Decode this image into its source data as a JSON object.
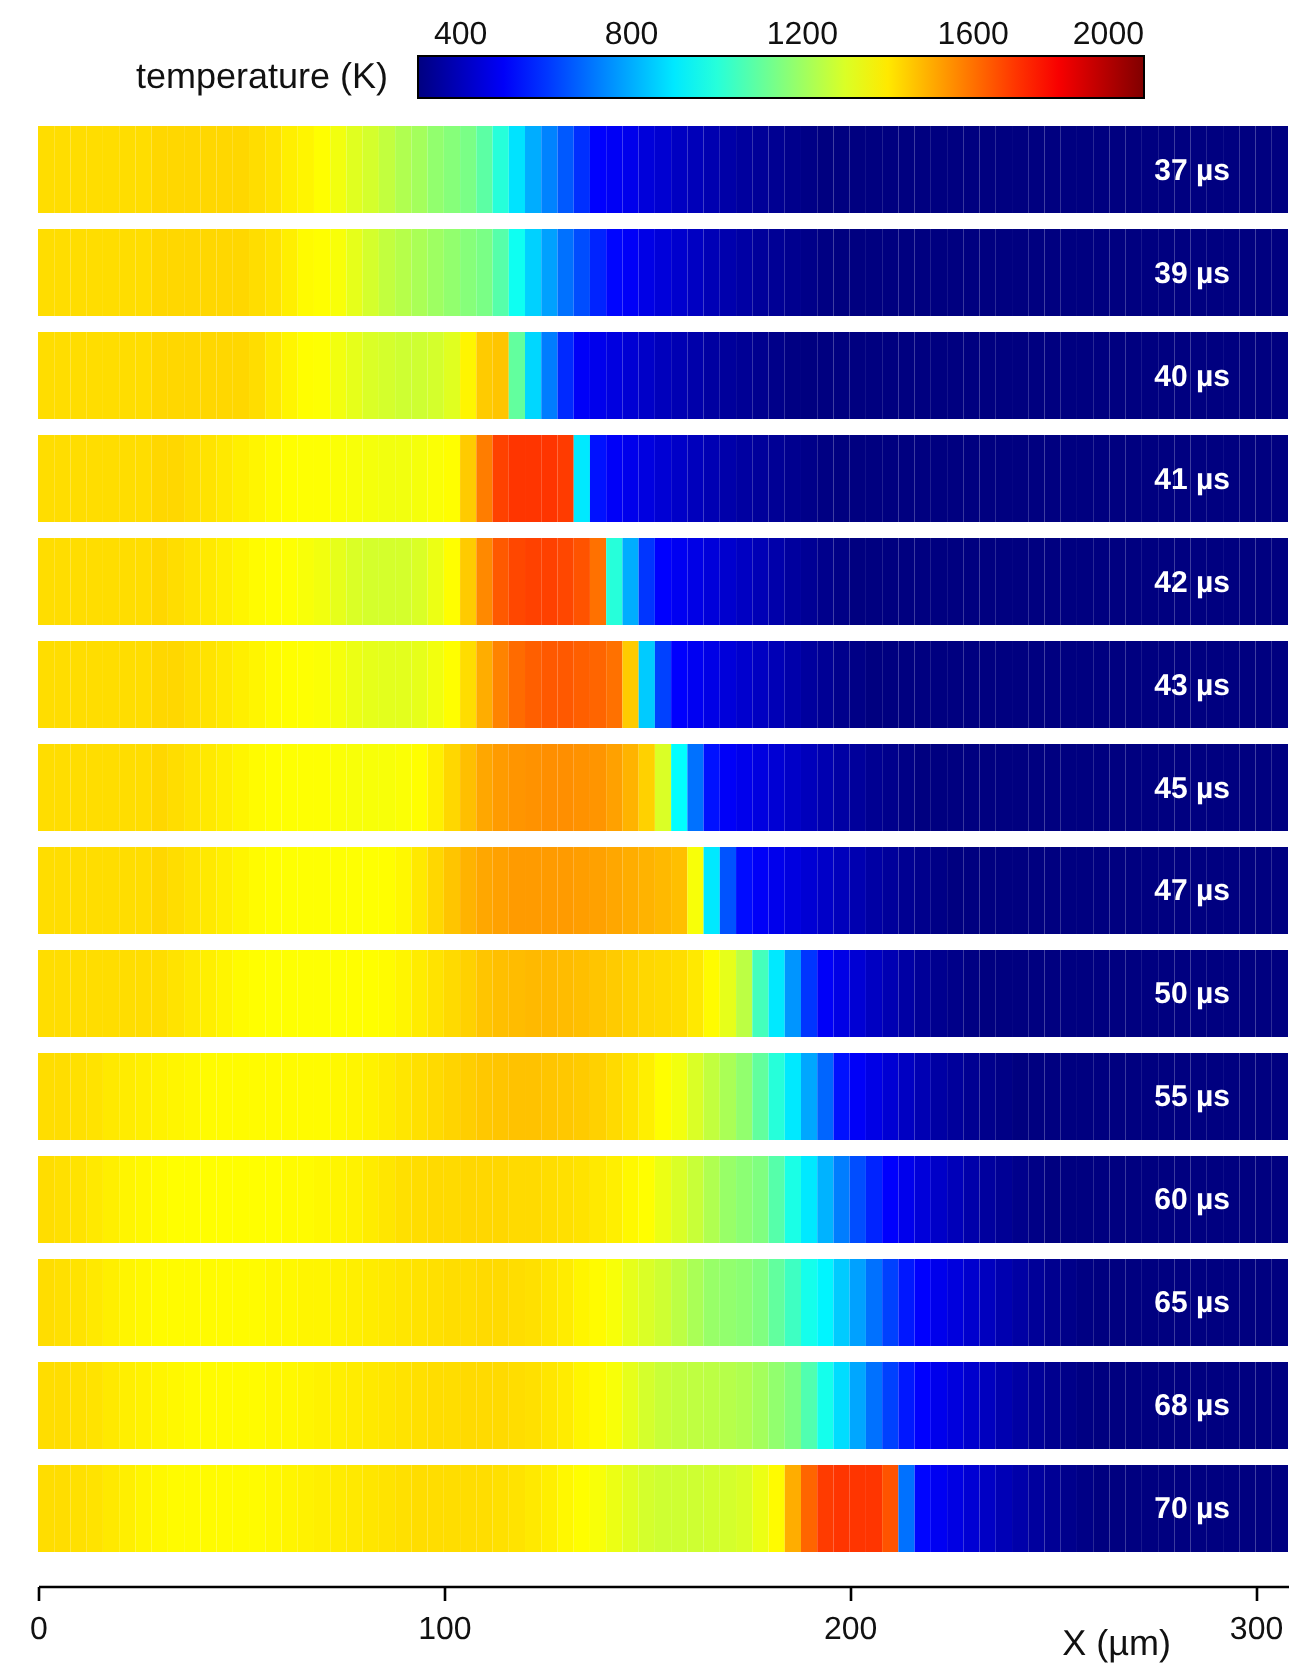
{
  "chart_data": {
    "type": "heatmap",
    "xlabel": "X (µm)",
    "clabel": "temperature (K)",
    "x": [
      2,
      6,
      10,
      14,
      18,
      22,
      26,
      30,
      34,
      38,
      42,
      46,
      50,
      54,
      58,
      62,
      66,
      70,
      74,
      78,
      82,
      86,
      90,
      94,
      98,
      102,
      106,
      110,
      114,
      118,
      122,
      126,
      130,
      134,
      138,
      142,
      146,
      150,
      154,
      158,
      162,
      166,
      170,
      174,
      178,
      182,
      186,
      190,
      194,
      198,
      202,
      206,
      210,
      214,
      218,
      222,
      226,
      230,
      234,
      238,
      242,
      246,
      250,
      254,
      258,
      262,
      266,
      270,
      274,
      278,
      282,
      286,
      290,
      294,
      298,
      302,
      306
    ],
    "y_categories": [
      "37 µs",
      "39 µs",
      "40 µs",
      "41 µs",
      "42 µs",
      "43 µs",
      "45 µs",
      "47 µs",
      "50 µs",
      "55 µs",
      "60 µs",
      "65 µs",
      "68 µs",
      "70 µs"
    ],
    "cells": [
      [
        1420,
        1420,
        1420,
        1420,
        1420,
        1420,
        1420,
        1430,
        1430,
        1430,
        1430,
        1430,
        1430,
        1420,
        1410,
        1390,
        1380,
        1365,
        1340,
        1310,
        1290,
        1260,
        1230,
        1210,
        1180,
        1160,
        1140,
        1090,
        1000,
        890,
        800,
        730,
        660,
        590,
        510,
        495,
        480,
        450,
        435,
        410,
        395,
        380,
        365,
        350,
        340,
        330,
        320,
        310,
        300,
        300,
        300,
        300,
        300,
        300,
        300,
        300,
        300,
        300,
        300,
        300,
        300,
        300,
        300,
        300,
        300,
        300,
        300,
        300,
        300,
        300,
        300,
        300,
        300,
        300,
        300,
        300,
        300
      ],
      [
        1420,
        1420,
        1420,
        1420,
        1420,
        1420,
        1420,
        1430,
        1430,
        1430,
        1430,
        1430,
        1430,
        1420,
        1410,
        1390,
        1370,
        1365,
        1350,
        1320,
        1290,
        1260,
        1240,
        1220,
        1200,
        1180,
        1160,
        1140,
        1080,
        960,
        860,
        780,
        700,
        640,
        570,
        520,
        500,
        470,
        450,
        430,
        410,
        390,
        375,
        360,
        345,
        335,
        325,
        315,
        305,
        300,
        300,
        300,
        300,
        300,
        300,
        300,
        300,
        300,
        300,
        300,
        300,
        300,
        300,
        300,
        300,
        300,
        300,
        300,
        300,
        300,
        300,
        300,
        300,
        300,
        300,
        300,
        300
      ],
      [
        1420,
        1420,
        1420,
        1420,
        1420,
        1420,
        1420,
        1430,
        1430,
        1430,
        1430,
        1430,
        1430,
        1420,
        1400,
        1380,
        1365,
        1360,
        1340,
        1320,
        1300,
        1290,
        1280,
        1280,
        1290,
        1310,
        1380,
        1450,
        1460,
        1100,
        870,
        720,
        580,
        500,
        480,
        460,
        440,
        420,
        400,
        385,
        370,
        355,
        345,
        335,
        325,
        315,
        305,
        300,
        300,
        300,
        300,
        300,
        300,
        300,
        300,
        300,
        300,
        300,
        300,
        300,
        300,
        300,
        300,
        300,
        300,
        300,
        300,
        300,
        300,
        300,
        300,
        300,
        300,
        300,
        300,
        300,
        300
      ],
      [
        1420,
        1420,
        1420,
        1420,
        1420,
        1420,
        1420,
        1430,
        1430,
        1420,
        1410,
        1400,
        1390,
        1380,
        1370,
        1365,
        1360,
        1360,
        1355,
        1350,
        1345,
        1340,
        1340,
        1345,
        1355,
        1365,
        1450,
        1580,
        1680,
        1700,
        1700,
        1700,
        1690,
        900,
        540,
        500,
        480,
        460,
        440,
        420,
        400,
        385,
        370,
        355,
        345,
        335,
        325,
        315,
        305,
        300,
        300,
        300,
        300,
        300,
        300,
        300,
        300,
        300,
        300,
        300,
        300,
        300,
        300,
        300,
        300,
        300,
        300,
        300,
        300,
        300,
        300,
        300,
        300,
        300,
        300,
        300,
        300
      ],
      [
        1420,
        1420,
        1420,
        1420,
        1420,
        1420,
        1420,
        1430,
        1420,
        1410,
        1400,
        1390,
        1380,
        1370,
        1365,
        1360,
        1350,
        1340,
        1320,
        1300,
        1290,
        1290,
        1290,
        1300,
        1330,
        1365,
        1450,
        1560,
        1640,
        1670,
        1680,
        1680,
        1670,
        1650,
        1600,
        1000,
        800,
        600,
        510,
        490,
        470,
        450,
        430,
        410,
        390,
        370,
        350,
        335,
        320,
        310,
        300,
        300,
        300,
        300,
        300,
        300,
        300,
        300,
        300,
        300,
        300,
        300,
        300,
        300,
        300,
        300,
        300,
        300,
        300,
        300,
        300,
        300,
        300,
        300,
        300,
        300,
        300
      ],
      [
        1420,
        1420,
        1420,
        1420,
        1420,
        1420,
        1420,
        1430,
        1430,
        1420,
        1410,
        1400,
        1390,
        1380,
        1370,
        1365,
        1360,
        1355,
        1345,
        1330,
        1320,
        1315,
        1315,
        1320,
        1340,
        1365,
        1420,
        1500,
        1570,
        1610,
        1630,
        1640,
        1640,
        1630,
        1620,
        1600,
        1450,
        850,
        620,
        510,
        490,
        470,
        450,
        430,
        410,
        390,
        370,
        350,
        335,
        320,
        310,
        300,
        300,
        300,
        300,
        300,
        300,
        300,
        300,
        300,
        300,
        300,
        300,
        300,
        300,
        300,
        300,
        300,
        300,
        300,
        300,
        300,
        300,
        300,
        300,
        300,
        300
      ],
      [
        1420,
        1420,
        1420,
        1420,
        1420,
        1420,
        1420,
        1430,
        1420,
        1410,
        1400,
        1390,
        1380,
        1370,
        1365,
        1360,
        1360,
        1360,
        1355,
        1350,
        1350,
        1350,
        1355,
        1365,
        1390,
        1430,
        1470,
        1510,
        1530,
        1540,
        1545,
        1550,
        1550,
        1545,
        1540,
        1520,
        1490,
        1440,
        1300,
        940,
        700,
        540,
        500,
        480,
        460,
        440,
        420,
        400,
        380,
        360,
        345,
        330,
        320,
        310,
        300,
        300,
        300,
        300,
        300,
        300,
        300,
        300,
        300,
        300,
        300,
        300,
        300,
        300,
        300,
        300,
        300,
        300,
        300,
        300,
        300,
        300,
        300
      ],
      [
        1420,
        1420,
        1420,
        1420,
        1420,
        1420,
        1420,
        1430,
        1420,
        1410,
        1400,
        1390,
        1380,
        1370,
        1365,
        1360,
        1360,
        1360,
        1360,
        1360,
        1360,
        1365,
        1375,
        1400,
        1430,
        1460,
        1490,
        1510,
        1520,
        1530,
        1530,
        1530,
        1530,
        1525,
        1520,
        1510,
        1500,
        1490,
        1480,
        1470,
        1350,
        900,
        650,
        530,
        500,
        480,
        460,
        440,
        420,
        400,
        380,
        360,
        345,
        330,
        320,
        310,
        300,
        300,
        300,
        300,
        300,
        300,
        300,
        300,
        300,
        300,
        300,
        300,
        300,
        300,
        300,
        300,
        300,
        300,
        300,
        300,
        300
      ],
      [
        1420,
        1420,
        1420,
        1420,
        1420,
        1420,
        1420,
        1420,
        1410,
        1400,
        1390,
        1380,
        1370,
        1365,
        1360,
        1360,
        1360,
        1360,
        1360,
        1365,
        1365,
        1370,
        1380,
        1395,
        1410,
        1425,
        1440,
        1460,
        1470,
        1475,
        1480,
        1480,
        1475,
        1470,
        1460,
        1450,
        1440,
        1430,
        1425,
        1420,
        1400,
        1370,
        1320,
        1250,
        1050,
        900,
        760,
        600,
        500,
        470,
        440,
        410,
        385,
        360,
        340,
        325,
        315,
        305,
        300,
        300,
        300,
        300,
        300,
        300,
        300,
        300,
        300,
        300,
        300,
        300,
        300,
        300,
        300,
        300,
        300,
        300,
        300
      ],
      [
        1420,
        1420,
        1415,
        1410,
        1400,
        1395,
        1390,
        1385,
        1380,
        1375,
        1370,
        1370,
        1370,
        1370,
        1370,
        1370,
        1370,
        1370,
        1375,
        1380,
        1385,
        1395,
        1405,
        1415,
        1425,
        1435,
        1445,
        1455,
        1460,
        1465,
        1465,
        1460,
        1455,
        1450,
        1440,
        1425,
        1410,
        1390,
        1365,
        1340,
        1300,
        1260,
        1220,
        1180,
        1100,
        1000,
        900,
        790,
        680,
        540,
        500,
        470,
        440,
        410,
        385,
        360,
        345,
        330,
        320,
        310,
        300,
        300,
        300,
        300,
        300,
        300,
        300,
        300,
        300,
        300,
        300,
        300,
        300,
        300,
        300,
        300,
        300
      ],
      [
        1420,
        1415,
        1410,
        1400,
        1390,
        1380,
        1375,
        1370,
        1365,
        1365,
        1365,
        1365,
        1365,
        1365,
        1365,
        1370,
        1370,
        1375,
        1380,
        1385,
        1395,
        1405,
        1415,
        1420,
        1425,
        1425,
        1430,
        1430,
        1430,
        1425,
        1425,
        1420,
        1415,
        1410,
        1400,
        1390,
        1375,
        1365,
        1330,
        1300,
        1270,
        1230,
        1190,
        1170,
        1150,
        1080,
        980,
        900,
        810,
        720,
        640,
        570,
        510,
        480,
        450,
        420,
        395,
        370,
        350,
        335,
        320,
        310,
        300,
        300,
        300,
        300,
        300,
        300,
        300,
        300,
        300,
        300,
        300,
        300,
        300,
        300,
        300
      ],
      [
        1420,
        1415,
        1410,
        1400,
        1390,
        1380,
        1375,
        1370,
        1370,
        1370,
        1370,
        1370,
        1370,
        1370,
        1375,
        1375,
        1380,
        1380,
        1385,
        1390,
        1395,
        1400,
        1405,
        1410,
        1415,
        1420,
        1420,
        1425,
        1425,
        1420,
        1415,
        1405,
        1395,
        1380,
        1370,
        1350,
        1320,
        1300,
        1280,
        1250,
        1220,
        1190,
        1180,
        1170,
        1150,
        1100,
        1040,
        970,
        920,
        850,
        780,
        700,
        620,
        550,
        510,
        480,
        455,
        430,
        405,
        380,
        360,
        340,
        325,
        315,
        305,
        300,
        300,
        300,
        300,
        300,
        300,
        300,
        300,
        300,
        300,
        300,
        300
      ],
      [
        1420,
        1420,
        1415,
        1410,
        1400,
        1390,
        1385,
        1380,
        1375,
        1370,
        1370,
        1370,
        1370,
        1370,
        1375,
        1375,
        1380,
        1385,
        1390,
        1395,
        1400,
        1405,
        1410,
        1415,
        1420,
        1420,
        1425,
        1425,
        1425,
        1420,
        1415,
        1405,
        1395,
        1380,
        1370,
        1350,
        1320,
        1290,
        1270,
        1260,
        1255,
        1250,
        1240,
        1230,
        1210,
        1180,
        1150,
        1070,
        970,
        880,
        790,
        700,
        620,
        550,
        510,
        480,
        455,
        430,
        405,
        380,
        360,
        340,
        325,
        315,
        305,
        300,
        300,
        300,
        300,
        300,
        300,
        300,
        300,
        300,
        300,
        300,
        300
      ],
      [
        1420,
        1420,
        1415,
        1410,
        1400,
        1390,
        1380,
        1375,
        1370,
        1370,
        1370,
        1370,
        1370,
        1370,
        1375,
        1380,
        1385,
        1390,
        1395,
        1400,
        1405,
        1410,
        1415,
        1420,
        1420,
        1420,
        1420,
        1420,
        1415,
        1410,
        1400,
        1390,
        1375,
        1365,
        1350,
        1330,
        1310,
        1290,
        1280,
        1280,
        1280,
        1285,
        1290,
        1300,
        1330,
        1370,
        1500,
        1620,
        1690,
        1700,
        1700,
        1700,
        1650,
        700,
        520,
        490,
        465,
        440,
        415,
        390,
        370,
        350,
        335,
        320,
        310,
        300,
        300,
        300,
        300,
        300,
        300,
        300,
        300,
        300,
        300,
        300,
        300
      ]
    ],
    "xlim": [
      0,
      308
    ],
    "xticks": [
      0,
      100,
      200,
      300
    ],
    "clim": [
      300,
      2000
    ],
    "cticks": [
      400,
      800,
      1200,
      1600,
      2000
    ]
  }
}
